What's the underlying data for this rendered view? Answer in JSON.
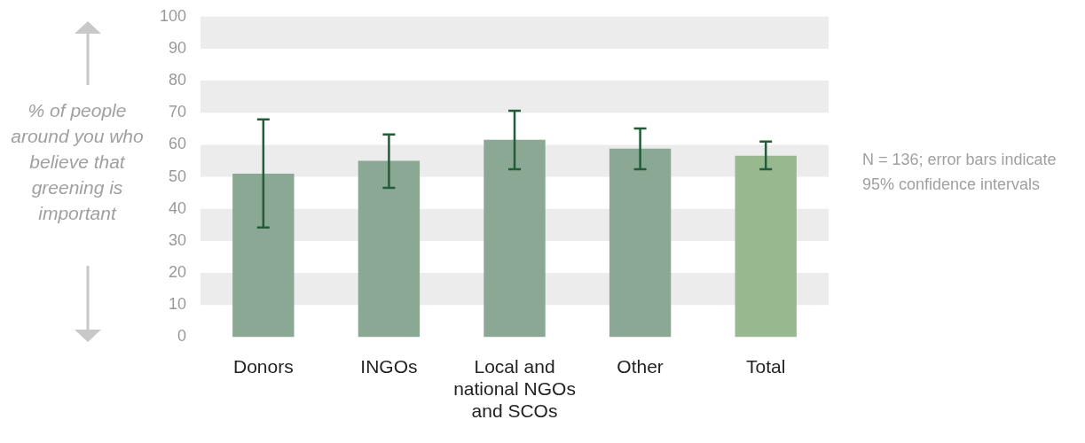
{
  "chart_data": {
    "type": "bar",
    "ylabel": "% of people around you who believe that greening is important",
    "categories": [
      "Donors",
      "INGOs",
      "Local and national NGOs and SCOs",
      "Other",
      "Total"
    ],
    "values": [
      51,
      55,
      61.6,
      58.8,
      56.6
    ],
    "colors": [
      "#8aa893",
      "#8aa893",
      "#8aa893",
      "#8aa893",
      "#98b890"
    ],
    "errors": [
      [
        34.2,
        67.9
      ],
      [
        46.6,
        63.2
      ],
      [
        52.4,
        70.6
      ],
      [
        52.4,
        65.1
      ],
      [
        52.4,
        61
      ]
    ],
    "ylim": [
      0,
      100
    ],
    "yticks": [
      0,
      10,
      20,
      30,
      40,
      50,
      60,
      70,
      80,
      90,
      100
    ],
    "bands": [
      {
        "axis": "y",
        "from": 10,
        "to": 20,
        "color": "#ececec"
      },
      {
        "axis": "y",
        "from": 30,
        "to": 40,
        "color": "#ececec"
      },
      {
        "axis": "y",
        "from": 50,
        "to": 60,
        "color": "#ececec"
      },
      {
        "axis": "y",
        "from": 70,
        "to": 80,
        "color": "#ececec"
      },
      {
        "axis": "y",
        "from": 90,
        "to": 100,
        "color": "#ececec"
      }
    ],
    "legend": false,
    "annotations": [
      "N = 136; error bars indicate 95% confidence intervals"
    ]
  }
}
